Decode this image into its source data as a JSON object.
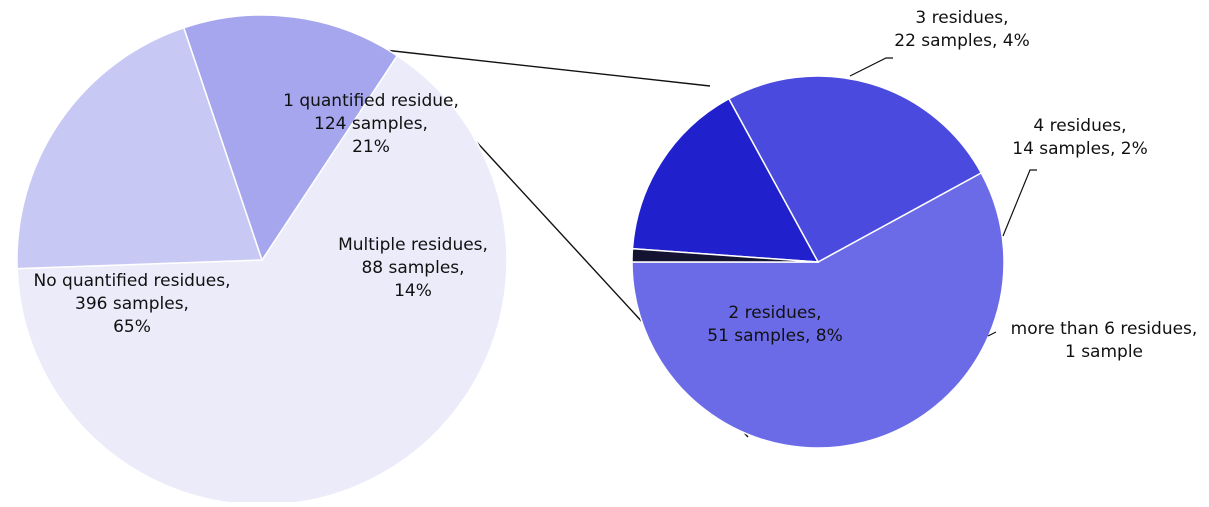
{
  "chart_data": [
    {
      "type": "pie",
      "name": "main-pie",
      "slices": [
        {
          "label": [
            "No quantified residues,",
            "396 samples,",
            "65%"
          ],
          "samples": 396,
          "percent": 65,
          "color": "#ebebfa"
        },
        {
          "label": [
            "1 quantified residue,",
            "124 samples,",
            "21%"
          ],
          "samples": 124,
          "percent": 21,
          "color": "#c8c8f5"
        },
        {
          "label": [
            "Multiple residues,",
            "88 samples,",
            "14%"
          ],
          "samples": 88,
          "percent": 14,
          "color": "#a6a6ee"
        }
      ]
    },
    {
      "type": "pie",
      "name": "breakdown-pie",
      "slices": [
        {
          "label": [
            "2 residues,",
            "51 samples, 8%"
          ],
          "samples": 51,
          "percent": 8,
          "color": "#6b6be8"
        },
        {
          "label": [
            "3 residues,",
            "22 samples, 4%"
          ],
          "samples": 22,
          "percent": 4,
          "color": "#4a4ade"
        },
        {
          "label": [
            "4 residues,",
            "14 samples, 2%"
          ],
          "samples": 14,
          "percent": 2,
          "color": "#2020cc"
        },
        {
          "label": [
            "more than 6 residues,",
            "1 sample"
          ],
          "samples": 1,
          "color": "#141432"
        }
      ]
    }
  ]
}
